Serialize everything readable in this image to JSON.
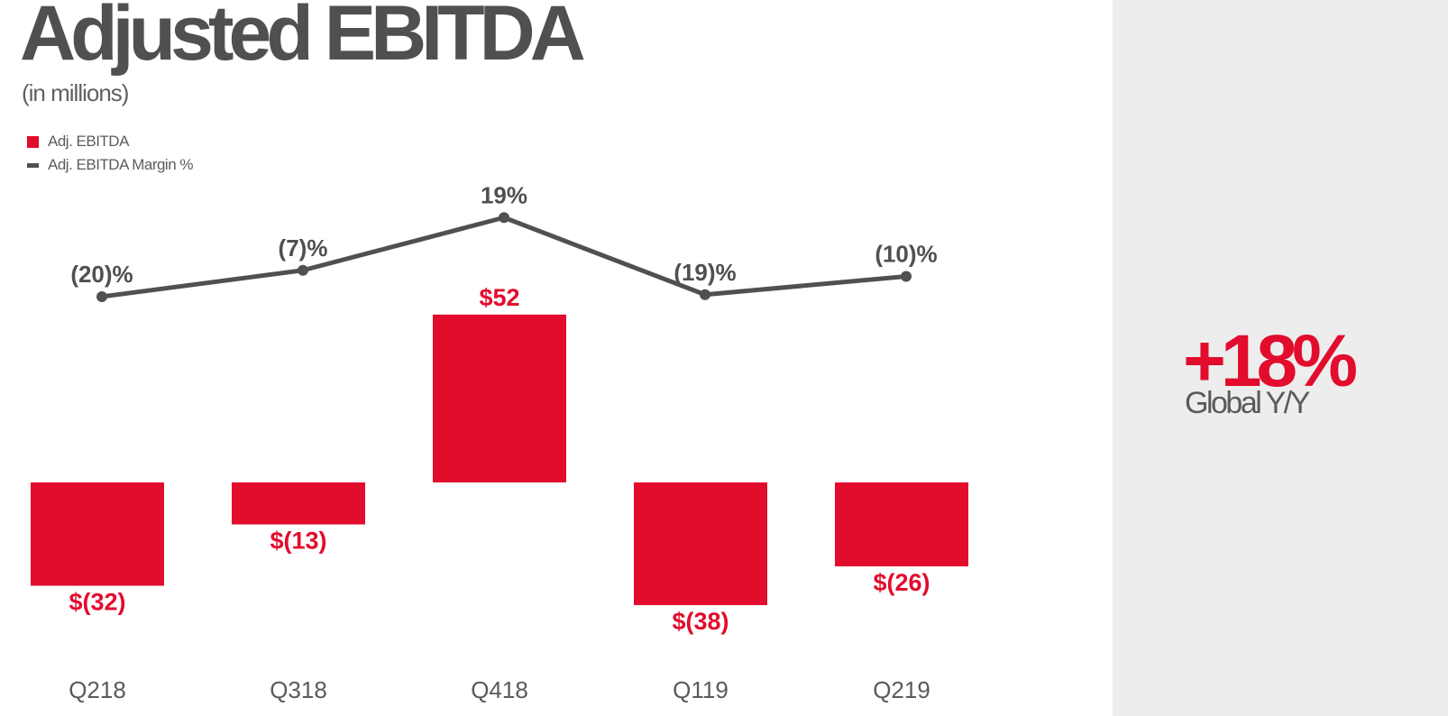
{
  "title": "Adjusted EBITDA",
  "subtitle": "(in millions)",
  "colors": {
    "bar": "#e20c2d",
    "line": "#505050",
    "text_dark": "#505050",
    "panel_bg": "#ededed"
  },
  "chart_data": {
    "type": "bar",
    "categories": [
      "Q218",
      "Q318",
      "Q418",
      "Q119",
      "Q219"
    ],
    "series": [
      {
        "name": "Adj. EBITDA",
        "type": "bar",
        "values": [
          -32,
          -13,
          52,
          -38,
          -26
        ],
        "labels": [
          "$(32)",
          "$(13)",
          "$52",
          "$(38)",
          "$(26)"
        ]
      },
      {
        "name": "Adj. EBITDA Margin %",
        "type": "line",
        "values": [
          -20,
          -7,
          19,
          -19,
          -10
        ],
        "labels": [
          "(20)%",
          "(7)%",
          "19%",
          "(19)%",
          "(10)%"
        ]
      }
    ],
    "legend": [
      "Adj. EBITDA",
      "Adj. EBITDA Margin %"
    ],
    "legend_position": "top-left",
    "grid": false
  },
  "highlight": {
    "value": "+18%",
    "label": "Global Y/Y"
  }
}
